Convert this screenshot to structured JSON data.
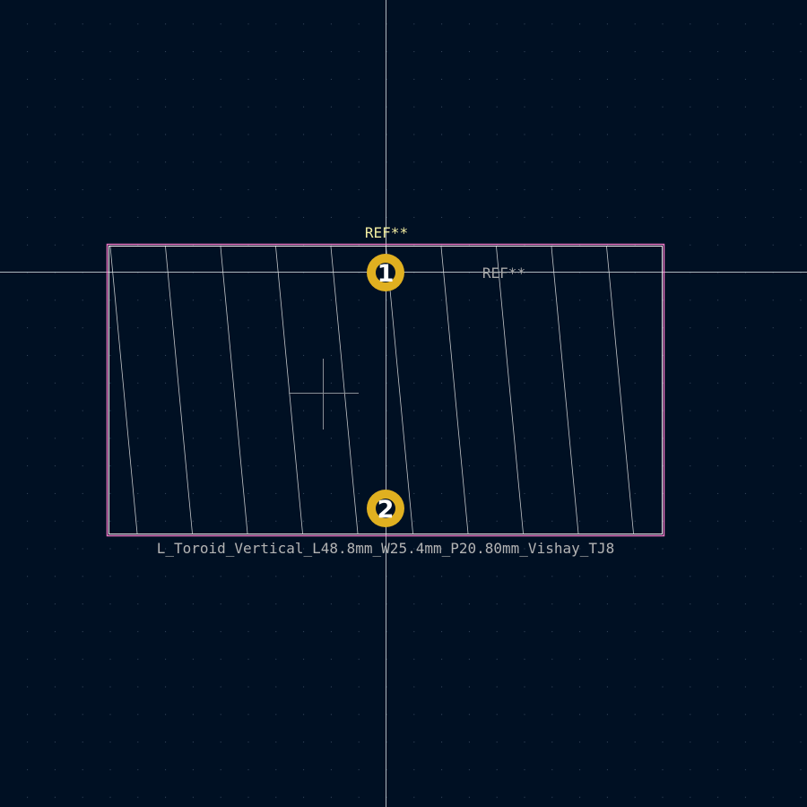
{
  "colors": {
    "background": "#001023",
    "grid": "#3c4d63",
    "axes": "#cfd3d8",
    "courtyard": "#ff7fd0",
    "fab_outline": "#e6e6e6",
    "pad": "#e0b020",
    "hole": "#001023",
    "anchor": "#8a8f96"
  },
  "footprint": {
    "reference_silkscreen": "REF**",
    "reference_fab": "REF**",
    "value": "L_Toroid_Vertical_L48.8mm_W25.4mm_P20.80mm_Vishay_TJ8",
    "pads": [
      {
        "number": "1"
      },
      {
        "number": "2"
      }
    ]
  }
}
